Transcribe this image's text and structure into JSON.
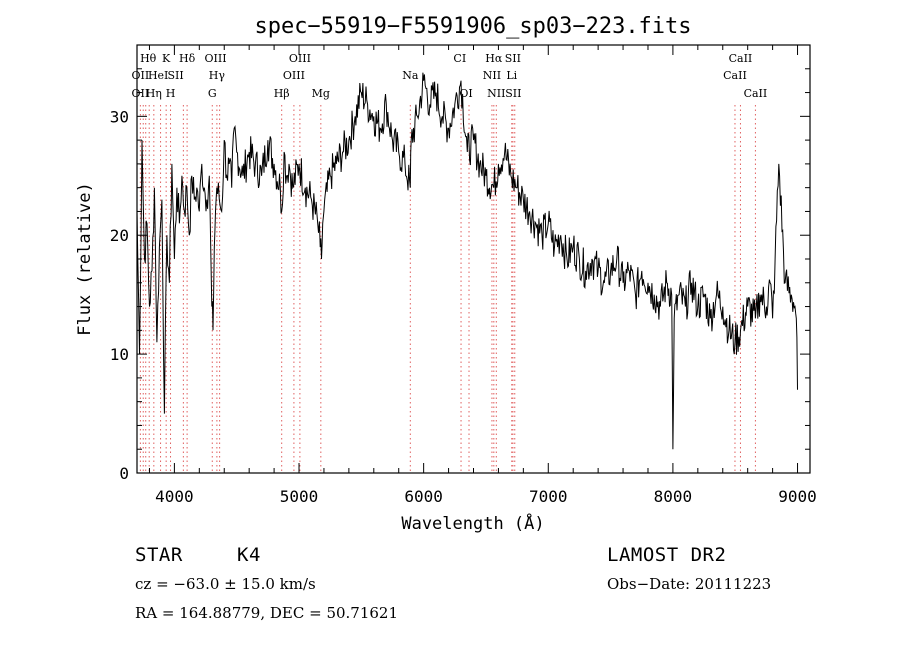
{
  "chart_data": {
    "type": "line",
    "title": "spec−55919−F5591906_sp03−223.fits",
    "xlabel": "Wavelength (Å)",
    "ylabel": "Flux (relative)",
    "xlim": [
      3700,
      9100
    ],
    "ylim": [
      0,
      36
    ],
    "xticks": [
      4000,
      5000,
      6000,
      7000,
      8000,
      9000
    ],
    "yticks": [
      0,
      10,
      20,
      30
    ],
    "grid": false,
    "series": [
      {
        "x": [
          3700,
          3720,
          3740,
          3760,
          3780,
          3800,
          3820,
          3840,
          3860,
          3880,
          3900,
          3920,
          3940,
          3960,
          3980,
          4000,
          4020,
          4040,
          4060,
          4080,
          4100,
          4120,
          4140,
          4160,
          4180,
          4200,
          4220,
          4240,
          4260,
          4280,
          4300,
          4310,
          4320,
          4330,
          4340,
          4360,
          4380,
          4400,
          4420,
          4440,
          4460,
          4480,
          4500,
          4550,
          4600,
          4650,
          4700,
          4750,
          4800,
          4850,
          4861,
          4880,
          4900,
          4920,
          4950,
          5000,
          5050,
          5100,
          5150,
          5170,
          5180,
          5190,
          5200,
          5250,
          5300,
          5350,
          5400,
          5450,
          5500,
          5550,
          5600,
          5650,
          5700,
          5750,
          5800,
          5850,
          5893,
          5900,
          5950,
          6000,
          6050,
          6100,
          6150,
          6200,
          6250,
          6300,
          6350,
          6400,
          6450,
          6500,
          6563,
          6600,
          6650,
          6700,
          6750,
          6800,
          6850,
          6900,
          6950,
          7000,
          7050,
          7100,
          7150,
          7200,
          7250,
          7300,
          7350,
          7400,
          7450,
          7500,
          7550,
          7600,
          7650,
          7700,
          7750,
          7800,
          7850,
          7900,
          7950,
          7990,
          8000,
          8010,
          8050,
          8100,
          8150,
          8200,
          8250,
          8300,
          8350,
          8400,
          8450,
          8498,
          8542,
          8600,
          8662,
          8700,
          8750,
          8780,
          8800,
          8820,
          8850,
          8900,
          8950,
          8980,
          8990,
          9000
        ],
        "y": [
          22,
          10,
          28,
          18,
          21,
          14,
          17,
          24,
          11,
          19,
          23,
          5,
          20,
          16,
          26,
          18,
          24,
          21,
          25,
          22,
          24,
          20,
          25,
          23,
          24,
          22,
          26,
          24,
          23,
          25,
          14,
          12,
          19,
          22,
          24,
          23,
          22,
          28,
          25,
          26,
          24,
          29,
          27,
          25,
          27,
          26,
          25,
          28,
          26,
          24,
          22,
          27,
          25,
          26,
          24,
          26,
          24,
          23,
          21,
          19,
          18,
          21,
          22,
          25,
          26,
          27,
          28,
          30,
          32,
          31,
          30,
          29,
          31,
          28,
          27,
          26,
          24,
          28,
          30,
          33,
          31,
          32,
          30,
          29,
          31,
          33,
          27,
          28,
          26,
          25,
          24,
          26,
          27,
          25,
          24,
          23,
          22,
          21,
          20,
          21,
          19,
          20,
          18,
          19,
          18,
          17,
          18,
          17,
          16,
          17,
          18,
          16,
          17,
          15,
          17,
          16,
          15,
          14,
          16,
          15,
          2,
          13,
          15,
          14,
          16,
          14,
          15,
          13,
          15,
          14,
          12,
          11,
          12,
          14,
          13,
          15,
          14,
          16,
          13,
          18,
          26,
          16,
          15,
          14,
          13,
          7
        ],
        "x2_note": ""
      }
    ],
    "lines": [
      {
        "wl": 3727,
        "labels": [
          "OII"
        ]
      },
      {
        "wl": 3750,
        "labels": [
          "OII"
        ]
      },
      {
        "wl": 3770,
        "labels": [
          "Hθ"
        ]
      },
      {
        "wl": 3798,
        "labels": [
          "Hθ"
        ]
      },
      {
        "wl": 3835,
        "labels": [
          "Hη"
        ]
      },
      {
        "wl": 3889,
        "labels": [
          "HeI"
        ]
      },
      {
        "wl": 3934,
        "labels": [
          "K"
        ]
      },
      {
        "wl": 3969,
        "labels": [
          "H"
        ]
      },
      {
        "wl": 4072,
        "labels": [
          "SII"
        ]
      },
      {
        "wl": 4102,
        "labels": [
          "Hδ"
        ]
      },
      {
        "wl": 4304,
        "labels": [
          "G"
        ]
      },
      {
        "wl": 4341,
        "labels": [
          "Hγ"
        ]
      },
      {
        "wl": 4363,
        "labels": [
          "OIII"
        ]
      },
      {
        "wl": 4861,
        "labels": [
          "Hβ"
        ]
      },
      {
        "wl": 4959,
        "labels": [
          "OIII"
        ]
      },
      {
        "wl": 5007,
        "labels": [
          "OIII"
        ]
      },
      {
        "wl": 5175,
        "labels": [
          "Mg"
        ]
      },
      {
        "wl": 5893,
        "labels": [
          "Na"
        ]
      },
      {
        "wl": 6300,
        "labels": [
          "OI"
        ]
      },
      {
        "wl": 6364,
        "labels": [
          "OI"
        ]
      },
      {
        "wl": 6548,
        "labels": [
          "NII"
        ]
      },
      {
        "wl": 6563,
        "labels": [
          "Hα"
        ]
      },
      {
        "wl": 6583,
        "labels": [
          "NII"
        ]
      },
      {
        "wl": 6707,
        "labels": [
          "Li"
        ]
      },
      {
        "wl": 6716,
        "labels": [
          "SII"
        ]
      },
      {
        "wl": 6731,
        "labels": [
          "SII"
        ]
      },
      {
        "wl": 8498,
        "labels": [
          "CaII"
        ]
      },
      {
        "wl": 8542,
        "labels": [
          "CaII"
        ]
      },
      {
        "wl": 8662,
        "labels": [
          "CaII"
        ]
      }
    ],
    "line_labels": [
      {
        "text": "Hθ",
        "wl": 3790,
        "row": 1
      },
      {
        "text": "K",
        "wl": 3934,
        "row": 1
      },
      {
        "text": "Hδ",
        "wl": 4102,
        "row": 1
      },
      {
        "text": "OIII",
        "wl": 4330,
        "row": 1
      },
      {
        "text": "OIII",
        "wl": 5007,
        "row": 1
      },
      {
        "text": "CI",
        "wl": 6290,
        "row": 1
      },
      {
        "text": "Hα",
        "wl": 6563,
        "row": 1
      },
      {
        "text": "SII",
        "wl": 6716,
        "row": 1
      },
      {
        "text": "CaII",
        "wl": 8542,
        "row": 1
      },
      {
        "text": "OII",
        "wl": 3727,
        "row": 2
      },
      {
        "text": "HeI",
        "wl": 3870,
        "row": 2
      },
      {
        "text": "SII",
        "wl": 4010,
        "row": 2
      },
      {
        "text": "Hγ",
        "wl": 4341,
        "row": 2
      },
      {
        "text": "OIII",
        "wl": 4959,
        "row": 2
      },
      {
        "text": "Na",
        "wl": 5893,
        "row": 2
      },
      {
        "text": "NII",
        "wl": 6548,
        "row": 2
      },
      {
        "text": "Li",
        "wl": 6707,
        "row": 2
      },
      {
        "text": "CaII",
        "wl": 8498,
        "row": 2
      },
      {
        "text": "OII",
        "wl": 3727,
        "row": 3
      },
      {
        "text": "Hη",
        "wl": 3835,
        "row": 3
      },
      {
        "text": "H",
        "wl": 3969,
        "row": 3
      },
      {
        "text": "G",
        "wl": 4304,
        "row": 3
      },
      {
        "text": "Hβ",
        "wl": 4861,
        "row": 3
      },
      {
        "text": "Mg",
        "wl": 5175,
        "row": 3
      },
      {
        "text": "OI",
        "wl": 6340,
        "row": 3
      },
      {
        "text": "NII",
        "wl": 6583,
        "row": 3
      },
      {
        "text": "SII",
        "wl": 6720,
        "row": 3
      },
      {
        "text": "CaII",
        "wl": 8662,
        "row": 3
      }
    ]
  },
  "info": {
    "class": "STAR",
    "subclass": "K4",
    "survey": "LAMOST DR2",
    "redshift": "cz = −63.0 ± 15.0 km/s",
    "obs_date": "Obs−Date: 20111223",
    "coords": "RA = 164.88779, DEC =  50.71621"
  },
  "colors": {
    "spectrum": "#000000",
    "line_markers": "#e06060"
  }
}
